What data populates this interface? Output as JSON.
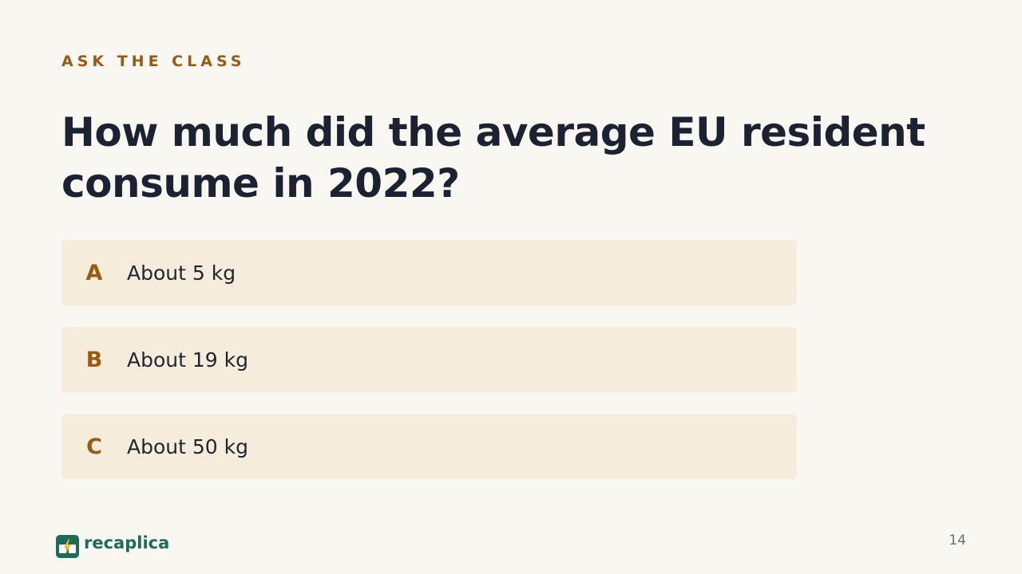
{
  "slide": {
    "kicker": "ASK THE CLASS",
    "question": "How much did the average EU resident consume in 2022?",
    "options": [
      {
        "letter": "A",
        "text": "About 5 kg"
      },
      {
        "letter": "B",
        "text": "About 19 kg"
      },
      {
        "letter": "C",
        "text": "About 50 kg"
      }
    ],
    "brand": {
      "name": "recaplica",
      "icon": "lightning-book-icon"
    },
    "page_number": "14"
  },
  "colors": {
    "background": "#f9f7f2",
    "accent": "#9a5a14",
    "heading": "#1c2231",
    "option_bg": "#f6ecdc",
    "brand": "#1d6b58",
    "bolt": "#f2c230"
  }
}
